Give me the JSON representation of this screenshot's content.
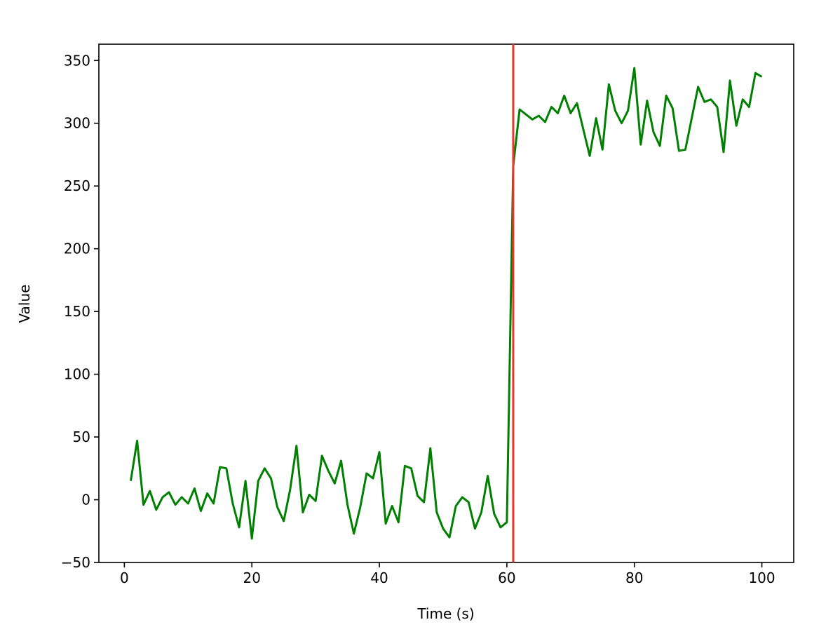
{
  "chart_data": {
    "type": "line",
    "title": "",
    "xlabel": "Time (s)",
    "ylabel": "Value",
    "xlim": [
      -4,
      105
    ],
    "ylim": [
      -50,
      363
    ],
    "xticks": [
      0,
      20,
      40,
      60,
      80,
      100
    ],
    "yticks": [
      -50,
      0,
      50,
      100,
      150,
      200,
      250,
      300,
      350
    ],
    "grid": false,
    "legend": "none",
    "series": [
      {
        "color": "#008000",
        "x": [
          1,
          2,
          3,
          4,
          5,
          6,
          7,
          8,
          9,
          10,
          11,
          12,
          13,
          14,
          15,
          16,
          17,
          18,
          19,
          20,
          21,
          22,
          23,
          24,
          25,
          26,
          27,
          28,
          29,
          30,
          31,
          32,
          33,
          34,
          35,
          36,
          37,
          38,
          39,
          40,
          41,
          42,
          43,
          44,
          45,
          46,
          47,
          48,
          49,
          50,
          51,
          52,
          53,
          54,
          55,
          56,
          57,
          58,
          59,
          60,
          61,
          62,
          63,
          64,
          65,
          66,
          67,
          68,
          69,
          70,
          71,
          72,
          73,
          74,
          75,
          76,
          77,
          78,
          79,
          80,
          81,
          82,
          83,
          84,
          85,
          86,
          87,
          88,
          89,
          90,
          91,
          92,
          93,
          94,
          95,
          96,
          97,
          98,
          99,
          100
        ],
        "y": [
          15,
          47,
          -4,
          7,
          -8,
          2,
          6,
          -4,
          2,
          -3,
          9,
          -9,
          5,
          -3,
          26,
          25,
          -3,
          -22,
          15,
          -31,
          15,
          25,
          17,
          -6,
          -17,
          8,
          43,
          -10,
          4,
          -1,
          35,
          23,
          13,
          31,
          -4,
          -27,
          -6,
          21,
          17,
          38,
          -19,
          -5,
          -18,
          27,
          25,
          3,
          -2,
          41,
          -10,
          -23,
          -30,
          -5,
          2,
          -2,
          -23,
          -10,
          19,
          -11,
          -22,
          -18,
          266,
          311,
          307,
          303,
          306,
          301,
          313,
          308,
          322,
          308,
          316,
          295,
          274,
          304,
          279,
          331,
          310,
          300,
          310,
          344,
          283,
          318,
          293,
          282,
          322,
          312,
          278,
          279,
          304,
          329,
          317,
          319,
          313,
          277,
          334,
          298,
          319,
          313,
          340,
          337
        ]
      }
    ],
    "vline": {
      "x": 61,
      "color": "#e8372a"
    }
  }
}
